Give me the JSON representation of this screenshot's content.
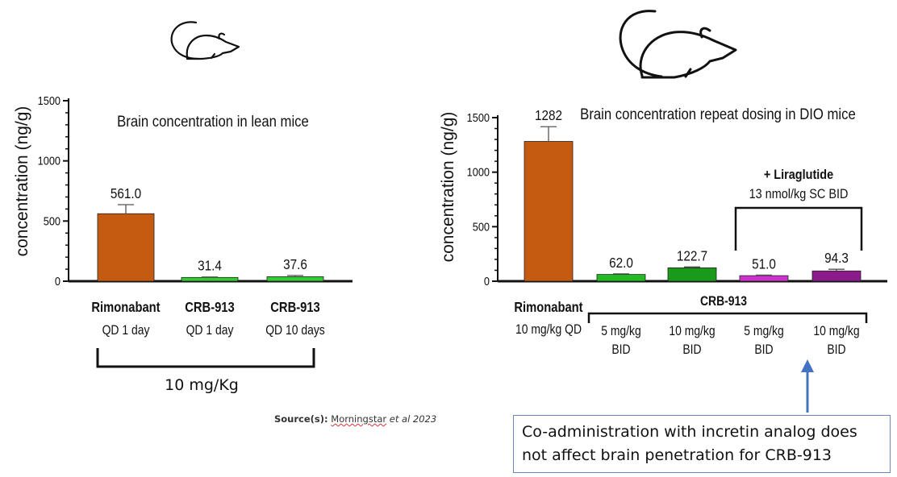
{
  "chart_data": [
    {
      "type": "bar",
      "title": "Brain concentration in lean mice",
      "ylabel": "concentration (ng/g)",
      "ylim": [
        0,
        1500
      ],
      "yticks": [
        "0",
        "500",
        "1000",
        "1500"
      ],
      "categories": [
        {
          "line1": "Rimonabant",
          "line2": "QD 1 day"
        },
        {
          "line1": "CRB-913",
          "line2": "QD 1 day"
        },
        {
          "line1": "CRB-913",
          "line2": "QD 10 days"
        }
      ],
      "values": [
        561.0,
        31.4,
        37.6
      ],
      "value_labels": [
        "561.0",
        "31.4",
        "37.6"
      ],
      "errors": [
        75,
        4,
        10
      ],
      "colors": [
        "#c55a11",
        "#33cc33",
        "#33cc33"
      ],
      "group_label": "10 mg/Kg"
    },
    {
      "type": "bar",
      "title": "Brain concentration repeat dosing in DIO mice",
      "ylabel": "concentration (ng/g)",
      "ylim": [
        0,
        1500
      ],
      "yticks": [
        "0",
        "500",
        "1000",
        "1500"
      ],
      "categories": [
        {
          "line1": "Rimonabant",
          "line2": "10 mg/kg QD"
        },
        {
          "line1": "5 mg/kg",
          "line2": "BID"
        },
        {
          "line1": "10 mg/kg",
          "line2": "BID"
        },
        {
          "line1": "5 mg/kg",
          "line2": "BID"
        },
        {
          "line1": "10 mg/kg",
          "line2": "BID"
        }
      ],
      "values": [
        1282,
        62.0,
        122.7,
        51.0,
        94.3
      ],
      "value_labels": [
        "1282",
        "62.0",
        "122.7",
        "51.0",
        "94.3"
      ],
      "errors": [
        135,
        5,
        8,
        5,
        15
      ],
      "colors": [
        "#c55a11",
        "#22bb22",
        "#1a9a1a",
        "#cc33cc",
        "#8b1a8b"
      ],
      "group_label": "CRB-913",
      "annotation_title": "+ Liraglutide",
      "annotation_subtitle": "13 nmol/kg SC BID"
    }
  ],
  "source": {
    "label": "Source(s):",
    "reference": "Morningstar",
    "etal": "et al 2023"
  },
  "callout": {
    "text": "Co-administration with incretin analog does not affect brain penetration for CRB-913"
  },
  "arrow_color": "#4472c4"
}
